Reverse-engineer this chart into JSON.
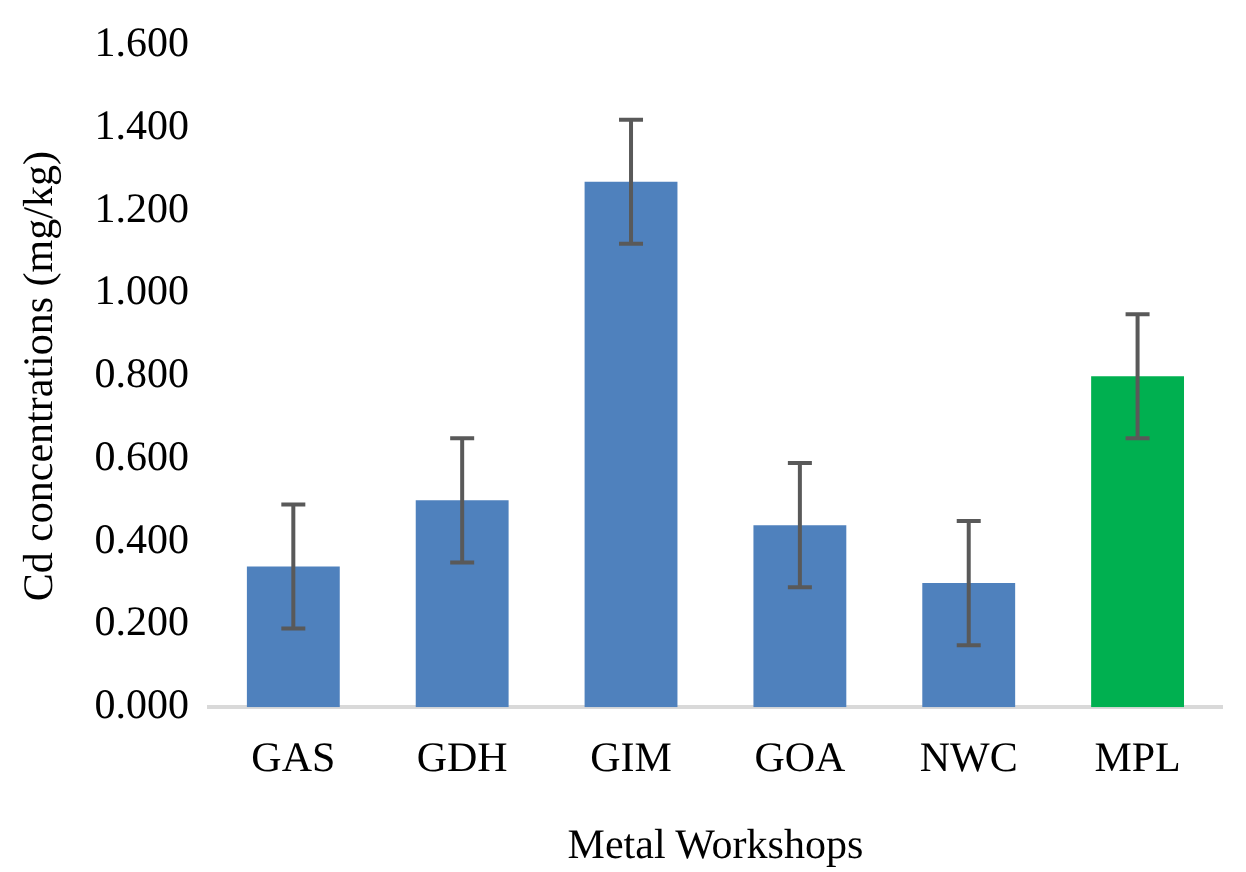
{
  "chart_data": {
    "type": "bar",
    "xlabel": "Metal Workshops",
    "ylabel": "Cd concentrations (mg/kg)",
    "categories": [
      "GAS",
      "GDH",
      "GIM",
      "GOA",
      "NWC",
      "MPL"
    ],
    "values": [
      0.34,
      0.5,
      1.27,
      0.44,
      0.3,
      0.8
    ],
    "colors": [
      "#4f81bd",
      "#4f81bd",
      "#4f81bd",
      "#4f81bd",
      "#4f81bd",
      "#00b050"
    ],
    "errors": [
      0.15,
      0.15,
      0.15,
      0.15,
      0.15,
      0.15
    ],
    "ylim": [
      0,
      1.6
    ],
    "yticks": [
      {
        "value": 0,
        "label": "0.000"
      },
      {
        "value": 0.2,
        "label": "0.200"
      },
      {
        "value": 0.4,
        "label": "0.400"
      },
      {
        "value": 0.6,
        "label": "0.600"
      },
      {
        "value": 0.8,
        "label": "0.800"
      },
      {
        "value": 1,
        "label": "1.000"
      },
      {
        "value": 1.2,
        "label": "1.200"
      },
      {
        "value": 1.4,
        "label": "1.400"
      },
      {
        "value": 1.6,
        "label": "1.600"
      }
    ],
    "grid": false,
    "legend": false
  }
}
